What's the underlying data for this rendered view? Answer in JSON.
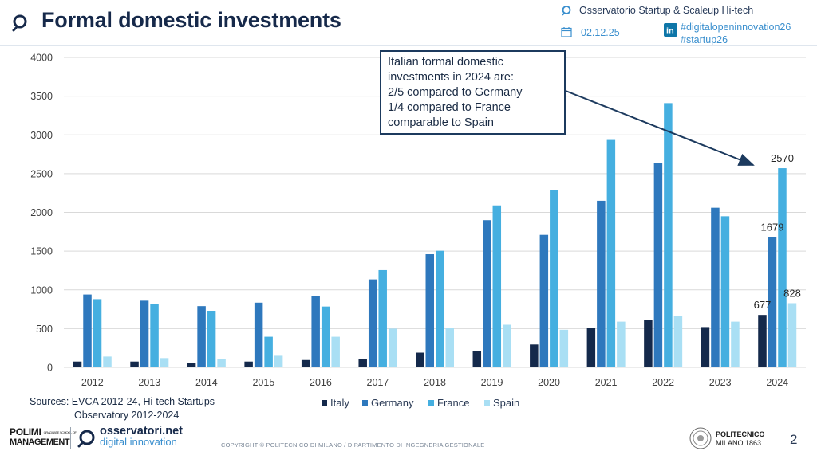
{
  "header": {
    "title": "Formal domestic investments",
    "observatory": "Osservatorio Startup & Scaleup Hi-tech",
    "date": "02.12.25",
    "hashtags": [
      "#digitalopeninnovation26",
      "#startup26"
    ]
  },
  "callout": {
    "lines": [
      "Italian formal domestic",
      "investments in 2024 are:",
      "2/5 compared to Germany",
      "1/4 compared to France",
      "comparable to Spain"
    ]
  },
  "sources": {
    "line1": "Sources: EVCA 2012-24, Hi-tech Startups",
    "line2": "Observatory 2012-2024"
  },
  "footer": {
    "logo_polimi_line1": "POLIMI",
    "logo_polimi_small": "GRADUATE SCHOOL OF",
    "logo_polimi_line2": "MANAGEMENT",
    "logo_osservatori_line1": "osservatori.net",
    "logo_osservatori_line2": "digital innovation",
    "copyright": "COPYRIGHT © POLITECNICO DI MILANO / DIPARTIMENTO DI INGEGNERIA GESTIONALE",
    "politecnico_line1": "POLITECNICO",
    "politecnico_line2": "MILANO 1863",
    "page_number": "2"
  },
  "colors": {
    "Italy": "#14294b",
    "Germany": "#2e78bd",
    "France": "#45afe0",
    "Spain": "#a9dff4",
    "accent": "#2a8fd0"
  },
  "chart_data": {
    "type": "bar",
    "categories": [
      "2012",
      "2013",
      "2014",
      "2015",
      "2016",
      "2017",
      "2018",
      "2019",
      "2020",
      "2021",
      "2022",
      "2023",
      "2024"
    ],
    "series": [
      {
        "name": "Italy",
        "values": [
          75,
          75,
          60,
          75,
          95,
          105,
          190,
          210,
          295,
          505,
          610,
          520,
          677
        ]
      },
      {
        "name": "Germany",
        "values": [
          940,
          860,
          790,
          835,
          920,
          1135,
          1460,
          1900,
          1710,
          2150,
          2640,
          2060,
          1679
        ]
      },
      {
        "name": "France",
        "values": [
          880,
          820,
          730,
          395,
          785,
          1255,
          1505,
          2090,
          2285,
          2935,
          3410,
          1950,
          2570
        ]
      },
      {
        "name": "Spain",
        "values": [
          140,
          120,
          110,
          150,
          395,
          500,
          510,
          550,
          485,
          590,
          665,
          590,
          828
        ]
      }
    ],
    "data_labels": [
      {
        "series": "Italy",
        "category": "2024",
        "text": "677"
      },
      {
        "series": "Germany",
        "category": "2024",
        "text": "1679"
      },
      {
        "series": "France",
        "category": "2024",
        "text": "2570"
      },
      {
        "series": "Spain",
        "category": "2024",
        "text": "828"
      }
    ],
    "ylim": [
      0,
      4000
    ],
    "yticks": [
      0,
      500,
      1000,
      1500,
      2000,
      2500,
      3000,
      3500,
      4000
    ],
    "grid": true,
    "legend": "bottom"
  }
}
